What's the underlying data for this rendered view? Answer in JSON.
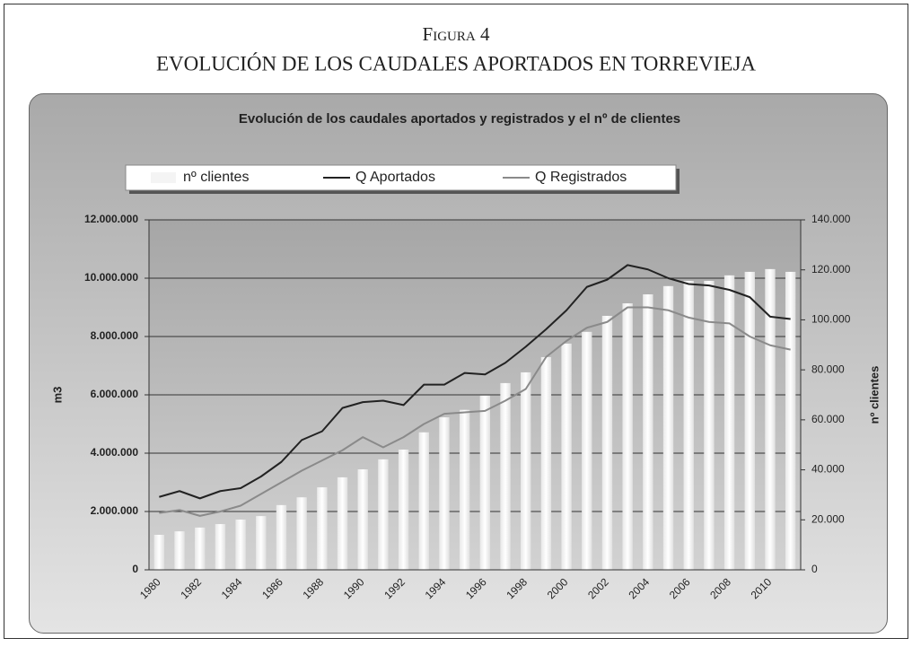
{
  "header": {
    "label": "Figura 4",
    "title": "EVOLUCIÓN DE LOS CAUDALES APORTADOS EN TORREVIEJA"
  },
  "chart_data": {
    "type": "bar",
    "title": "Evolución de los caudales aportados y registrados y el nº de clientes",
    "y_label": "m3",
    "y2_label": "nº clientes",
    "categories": [
      "1980",
      null,
      "1982",
      null,
      "1984",
      null,
      "1986",
      null,
      "1988",
      null,
      "1990",
      null,
      "1992",
      null,
      "1994",
      null,
      "1996",
      null,
      "1998",
      null,
      "2000",
      null,
      "2002",
      null,
      "2004",
      null,
      "2006",
      null,
      "2008",
      null,
      "2010",
      null
    ],
    "series": [
      {
        "name": "nº clientes",
        "type": "bar",
        "axis": "y2",
        "color": "#ffffff",
        "values": [
          14000,
          15400,
          16900,
          18300,
          20100,
          21500,
          25900,
          29000,
          33000,
          37000,
          40200,
          44200,
          48100,
          55000,
          61000,
          64000,
          69700,
          74700,
          79000,
          85100,
          90500,
          95200,
          101600,
          106600,
          110200,
          113500,
          115600,
          115600,
          117800,
          119200,
          120300,
          119200
        ]
      },
      {
        "name": "Q Aportados",
        "type": "line",
        "color": "#222222",
        "values": [
          2500000,
          2700000,
          2450000,
          2700000,
          2800000,
          3200000,
          3700000,
          4450000,
          4750000,
          5550000,
          5750000,
          5800000,
          5650000,
          6350000,
          6350000,
          6750000,
          6700000,
          7100000,
          7650000,
          8250000,
          8900000,
          9700000,
          9950000,
          10450000,
          10300000,
          10000000,
          9800000,
          9750000,
          9600000,
          9350000,
          8680000,
          8600000
        ]
      },
      {
        "name": "Q Registrados",
        "type": "line",
        "color": "#8a8a8a",
        "values": [
          1950000,
          2050000,
          1850000,
          2000000,
          2200000,
          2600000,
          3000000,
          3400000,
          3750000,
          4100000,
          4550000,
          4200000,
          4550000,
          5000000,
          5350000,
          5400000,
          5450000,
          5800000,
          6200000,
          7300000,
          7850000,
          8300000,
          8500000,
          9000000,
          9000000,
          8900000,
          8650000,
          8500000,
          8450000,
          8000000,
          7700000,
          7550000
        ]
      }
    ],
    "ylim": [
      0,
      12000000
    ],
    "yticks": [
      0,
      {
        "value": 2000000,
        "label": "2.000.000"
      },
      {
        "value": 4000000,
        "label": "4.000.000"
      },
      {
        "value": 6000000,
        "label": "6.000.000"
      },
      {
        "value": 8000000,
        "label": "8.000.000"
      },
      {
        "value": 10000000,
        "label": "10.000.000"
      },
      {
        "value": 12000000,
        "label": "12.000.000"
      }
    ],
    "y2lim": [
      0,
      140000
    ],
    "y2ticks": [
      0,
      {
        "value": 20000,
        "label": "20.000"
      },
      {
        "value": 40000,
        "label": "40.000"
      },
      {
        "value": 60000,
        "label": "60.000"
      },
      {
        "value": 80000,
        "label": "80.000"
      },
      {
        "value": 100000,
        "label": "100.000"
      },
      {
        "value": 120000,
        "label": "120.000"
      },
      {
        "value": 140000,
        "label": "140.000"
      }
    ],
    "grid": true
  }
}
